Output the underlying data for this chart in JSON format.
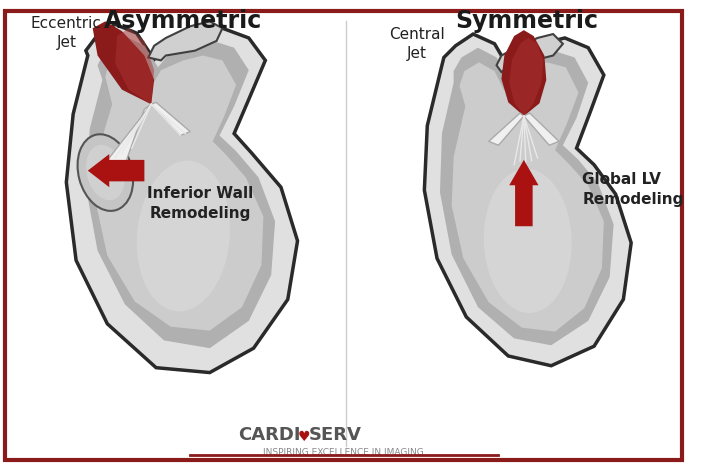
{
  "title_left": "Asymmetric",
  "title_right": "Symmetric",
  "label_left_arrow": "Inferior Wall\nRemodeling",
  "label_right_arrow": "Global LV\nRemodeling",
  "label_bottom_left": "Eccentric\nJet",
  "label_bottom_right": "Central\nJet",
  "brand_sub": "INSPIRING EXCELLENCE IN IMAGING",
  "bg_color": "#ffffff",
  "border_color": "#8b1a1a",
  "arrow_color": "#aa1111"
}
